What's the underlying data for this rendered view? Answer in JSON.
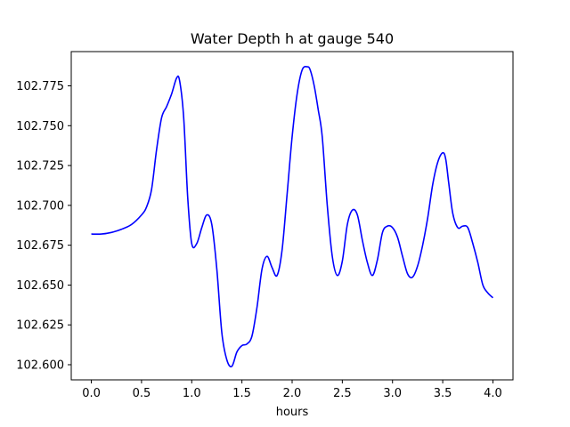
{
  "chart_data": {
    "type": "line",
    "title": "Water Depth h at gauge 540",
    "xlabel": "hours",
    "ylabel": "",
    "xlim": [
      -0.2,
      4.2
    ],
    "ylim": [
      102.5905,
      102.7965
    ],
    "xticks": [
      0.0,
      0.5,
      1.0,
      1.5,
      2.0,
      2.5,
      3.0,
      3.5,
      4.0
    ],
    "xtick_labels": [
      "0.0",
      "0.5",
      "1.0",
      "1.5",
      "2.0",
      "2.5",
      "3.0",
      "3.5",
      "4.0"
    ],
    "yticks": [
      102.6,
      102.625,
      102.65,
      102.675,
      102.7,
      102.725,
      102.75,
      102.775
    ],
    "ytick_labels": [
      "102.600",
      "102.625",
      "102.650",
      "102.675",
      "102.700",
      "102.725",
      "102.750",
      "102.775"
    ],
    "grid": false,
    "series": [
      {
        "color": "#0000ff",
        "x": [
          0.0,
          0.1,
          0.2,
          0.3,
          0.4,
          0.5,
          0.55,
          0.6,
          0.65,
          0.7,
          0.75,
          0.8,
          0.85,
          0.88,
          0.92,
          0.96,
          1.0,
          1.05,
          1.1,
          1.15,
          1.2,
          1.25,
          1.3,
          1.35,
          1.4,
          1.45,
          1.5,
          1.55,
          1.6,
          1.65,
          1.7,
          1.75,
          1.8,
          1.85,
          1.9,
          1.95,
          2.0,
          2.05,
          2.1,
          2.15,
          2.18,
          2.22,
          2.26,
          2.3,
          2.35,
          2.4,
          2.45,
          2.5,
          2.55,
          2.6,
          2.65,
          2.7,
          2.75,
          2.8,
          2.85,
          2.9,
          2.95,
          3.0,
          3.05,
          3.1,
          3.15,
          3.2,
          3.25,
          3.3,
          3.35,
          3.4,
          3.45,
          3.5,
          3.53,
          3.56,
          3.6,
          3.65,
          3.7,
          3.75,
          3.8,
          3.85,
          3.9,
          3.95,
          4.0
        ],
        "y": [
          102.682,
          102.682,
          102.683,
          102.685,
          102.688,
          102.694,
          102.699,
          102.71,
          102.735,
          102.755,
          102.762,
          102.77,
          102.78,
          102.778,
          102.755,
          102.705,
          102.676,
          102.676,
          102.686,
          102.694,
          102.688,
          102.66,
          102.62,
          102.603,
          102.599,
          102.608,
          102.612,
          102.613,
          102.618,
          102.636,
          102.66,
          102.668,
          102.661,
          102.656,
          102.672,
          102.707,
          102.743,
          102.77,
          102.785,
          102.787,
          102.785,
          102.775,
          102.76,
          102.743,
          102.7,
          102.668,
          102.656,
          102.665,
          102.688,
          102.697,
          102.694,
          102.678,
          102.664,
          102.656,
          102.666,
          102.683,
          102.687,
          102.686,
          102.68,
          102.668,
          102.657,
          102.655,
          102.662,
          102.675,
          102.692,
          102.713,
          102.727,
          102.733,
          102.729,
          102.714,
          102.695,
          102.686,
          102.687,
          102.686,
          102.676,
          102.664,
          102.65,
          102.645,
          102.642
        ]
      }
    ]
  }
}
